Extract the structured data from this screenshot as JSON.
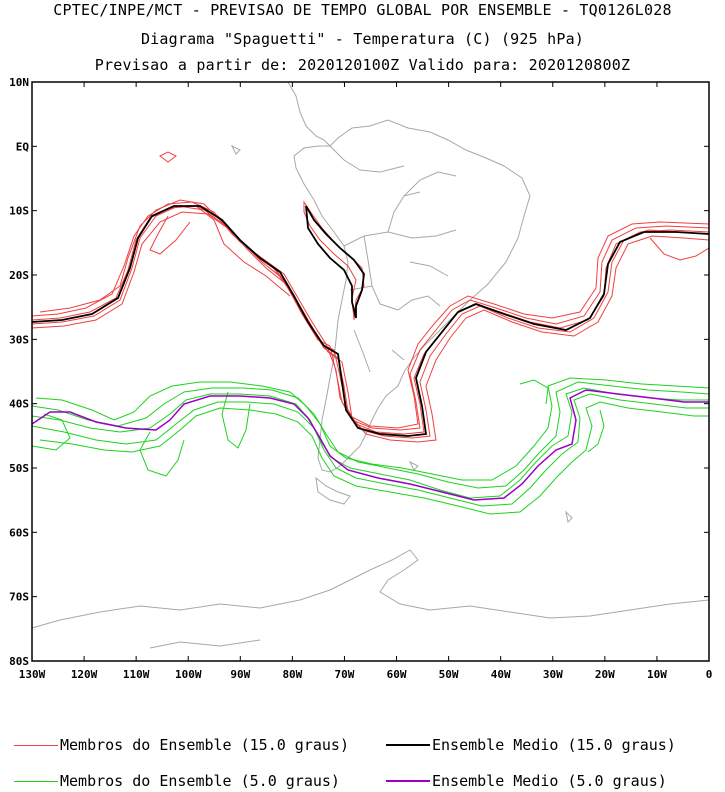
{
  "title": {
    "line1": "CPTEC/INPE/MCT - PREVISAO DE TEMPO GLOBAL POR ENSEMBLE - TQ0126L028",
    "line2": "Diagrama \"Spaguetti\" - Temperatura (C) (925 hPa)",
    "line3": "Previsao a partir de: 2020120100Z  Valido para: 2020120800Z"
  },
  "axes": {
    "lat_ticks": [
      "10N",
      "EQ",
      "10S",
      "20S",
      "30S",
      "40S",
      "50S",
      "60S",
      "70S",
      "80S"
    ],
    "lon_ticks": [
      "130W",
      "120W",
      "110W",
      "100W",
      "90W",
      "80W",
      "70W",
      "60W",
      "50W",
      "40W",
      "30W",
      "20W",
      "10W",
      "0"
    ]
  },
  "colors": {
    "member_15": "#f04040",
    "mean_15": "#000000",
    "member_5": "#1ed21e",
    "mean_5": "#9a00c8",
    "coast": "#a8a8a8"
  },
  "legend": [
    {
      "label": "Membros do Ensemble (15.0 graus)",
      "color": "#f04040",
      "style": "member"
    },
    {
      "label": "Ensemble Medio (15.0 graus)",
      "color": "#000000",
      "style": "mean"
    },
    {
      "label": "Membros do Ensemble (5.0 graus)",
      "color": "#1ed21e",
      "style": "member"
    },
    {
      "label": "Ensemble Medio (5.0 graus)",
      "color": "#9a00c8",
      "style": "mean"
    }
  ]
}
